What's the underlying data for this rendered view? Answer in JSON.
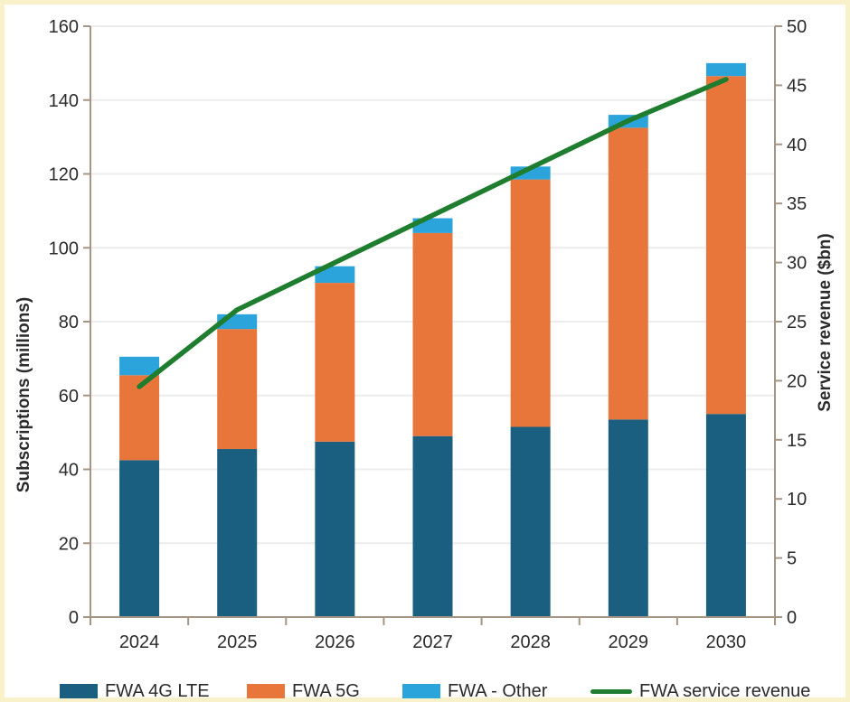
{
  "chart_data": {
    "type": "bar",
    "subtype": "stacked-bar-with-line-combo",
    "categories": [
      "2024",
      "2025",
      "2026",
      "2027",
      "2028",
      "2029",
      "2030"
    ],
    "series": [
      {
        "name": "FWA 4G LTE",
        "type": "bar",
        "axis": "left",
        "color": "#1b5f80",
        "values": [
          42.5,
          45.5,
          47.5,
          49,
          51.5,
          53.5,
          55
        ]
      },
      {
        "name": "FWA 5G",
        "type": "bar",
        "axis": "left",
        "color": "#e8753a",
        "values": [
          23,
          32.5,
          43,
          55,
          67,
          79,
          91.5
        ]
      },
      {
        "name": "FWA - Other",
        "type": "bar",
        "axis": "left",
        "color": "#2aa4db",
        "values": [
          5,
          4,
          4.5,
          4,
          3.5,
          3.5,
          3.5
        ]
      },
      {
        "name": "FWA service revenue",
        "type": "line",
        "axis": "right",
        "color": "#1e7d2e",
        "values": [
          19.5,
          26,
          30,
          34,
          38,
          42,
          45.5
        ]
      }
    ],
    "stacked_totals": [
      70.5,
      82,
      95,
      108,
      122,
      136,
      150
    ],
    "left_axis": {
      "label": "Subscriptions (millions)",
      "min": 0,
      "max": 160,
      "step": 20,
      "tick_labels": [
        "0",
        "20",
        "40",
        "60",
        "80",
        "100",
        "120",
        "140",
        "160"
      ]
    },
    "right_axis": {
      "label": "Service revenue ($bn)",
      "min": 0,
      "max": 50,
      "step": 5,
      "tick_labels": [
        "0",
        "5",
        "10",
        "15",
        "20",
        "25",
        "30",
        "35",
        "40",
        "45",
        "50"
      ]
    },
    "grid": true,
    "legend_position": "bottom",
    "stacked": true
  },
  "colors": {
    "axis": "#a59585",
    "grid": "#ececec",
    "text": "#2b2b2b",
    "background": "#ffffff",
    "frame_border": "#f8f1ca"
  }
}
